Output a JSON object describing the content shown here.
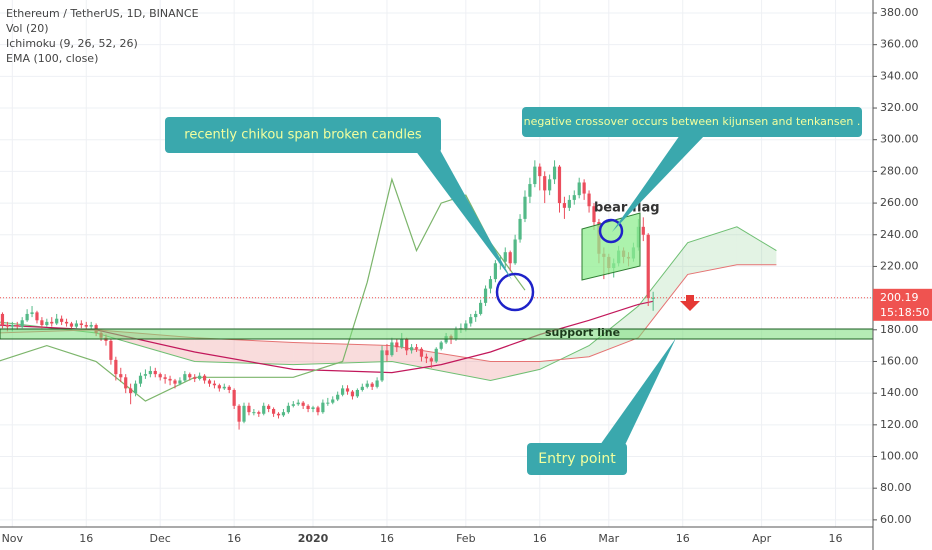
{
  "chart_data": {
    "type": "candlestick",
    "title": "Ethereum / TetherUS, 1D, BINANCE",
    "indicators": [
      "Vol (20)",
      "Ichimoku (9, 26, 52, 26)",
      "EMA (100, close)"
    ],
    "up_color": "#53b987",
    "down_color": "#eb4d5c",
    "candles": [
      [
        188,
        193,
        186,
        190
      ],
      [
        190,
        191,
        181,
        183
      ],
      [
        183,
        185,
        179,
        182
      ],
      [
        182,
        185,
        179,
        183
      ],
      [
        183,
        185,
        180,
        182
      ],
      [
        182,
        188,
        181,
        186
      ],
      [
        186,
        193,
        185,
        190
      ],
      [
        190,
        195,
        188,
        191
      ],
      [
        191,
        192,
        184,
        186
      ],
      [
        186,
        188,
        181,
        183
      ],
      [
        183,
        187,
        182,
        185
      ],
      [
        185,
        188,
        182,
        184
      ],
      [
        184,
        190,
        183,
        187
      ],
      [
        187,
        189,
        183,
        185
      ],
      [
        185,
        187,
        182,
        184
      ],
      [
        184,
        185,
        180,
        182
      ],
      [
        182,
        186,
        181,
        184
      ],
      [
        184,
        186,
        181,
        183
      ],
      [
        183,
        185,
        180,
        182
      ],
      [
        182,
        185,
        180,
        183
      ],
      [
        183,
        184,
        176,
        178
      ],
      [
        178,
        180,
        173,
        175
      ],
      [
        175,
        177,
        170,
        173
      ],
      [
        173,
        174,
        158,
        161
      ],
      [
        161,
        163,
        148,
        152
      ],
      [
        152,
        156,
        147,
        150
      ],
      [
        150,
        152,
        140,
        143
      ],
      [
        143,
        146,
        133,
        140
      ],
      [
        140,
        148,
        138,
        146
      ],
      [
        146,
        153,
        144,
        151
      ],
      [
        151,
        155,
        149,
        152
      ],
      [
        152,
        157,
        150,
        154
      ],
      [
        154,
        156,
        150,
        152
      ],
      [
        152,
        153,
        148,
        150
      ],
      [
        150,
        152,
        146,
        149
      ],
      [
        149,
        151,
        145,
        148
      ],
      [
        148,
        149,
        143,
        146
      ],
      [
        146,
        150,
        145,
        148
      ],
      [
        148,
        154,
        147,
        152
      ],
      [
        152,
        153,
        148,
        150
      ],
      [
        150,
        152,
        147,
        149
      ],
      [
        149,
        153,
        148,
        151
      ],
      [
        151,
        152,
        146,
        148
      ],
      [
        148,
        149,
        144,
        146
      ],
      [
        146,
        148,
        143,
        145
      ],
      [
        145,
        146,
        141,
        143
      ],
      [
        143,
        146,
        142,
        144
      ],
      [
        144,
        145,
        140,
        142
      ],
      [
        142,
        143,
        130,
        132
      ],
      [
        132,
        133,
        117,
        122
      ],
      [
        122,
        134,
        121,
        132
      ],
      [
        132,
        134,
        126,
        128
      ],
      [
        128,
        130,
        126,
        128
      ],
      [
        128,
        129,
        125,
        127
      ],
      [
        127,
        134,
        126,
        132
      ],
      [
        132,
        133,
        128,
        130
      ],
      [
        130,
        131,
        125,
        127
      ],
      [
        127,
        128,
        124,
        126
      ],
      [
        126,
        130,
        125,
        128
      ],
      [
        128,
        134,
        127,
        132
      ],
      [
        132,
        135,
        131,
        133
      ],
      [
        133,
        136,
        132,
        134
      ],
      [
        134,
        135,
        130,
        132
      ],
      [
        132,
        133,
        128,
        130
      ],
      [
        130,
        132,
        128,
        131
      ],
      [
        131,
        132,
        126,
        128
      ],
      [
        128,
        136,
        127,
        134
      ],
      [
        134,
        137,
        132,
        134
      ],
      [
        134,
        138,
        133,
        136
      ],
      [
        136,
        141,
        135,
        139
      ],
      [
        139,
        145,
        138,
        143
      ],
      [
        143,
        145,
        139,
        141
      ],
      [
        141,
        142,
        136,
        138
      ],
      [
        138,
        143,
        137,
        142
      ],
      [
        142,
        146,
        141,
        144
      ],
      [
        144,
        148,
        143,
        146
      ],
      [
        146,
        147,
        142,
        144
      ],
      [
        144,
        150,
        143,
        148
      ],
      [
        148,
        170,
        147,
        167
      ],
      [
        167,
        171,
        160,
        164
      ],
      [
        164,
        175,
        163,
        172
      ],
      [
        172,
        174,
        166,
        169
      ],
      [
        169,
        178,
        168,
        174
      ],
      [
        174,
        175,
        164,
        167
      ],
      [
        167,
        171,
        165,
        169
      ],
      [
        169,
        171,
        166,
        168
      ],
      [
        168,
        169,
        160,
        163
      ],
      [
        163,
        165,
        159,
        162
      ],
      [
        162,
        163,
        156,
        160
      ],
      [
        160,
        169,
        159,
        168
      ],
      [
        168,
        173,
        167,
        172
      ],
      [
        172,
        178,
        171,
        176
      ],
      [
        176,
        177,
        171,
        174
      ],
      [
        174,
        182,
        173,
        180
      ],
      [
        180,
        184,
        178,
        181
      ],
      [
        181,
        186,
        179,
        184
      ],
      [
        184,
        190,
        182,
        188
      ],
      [
        188,
        192,
        185,
        190
      ],
      [
        190,
        199,
        189,
        197
      ],
      [
        197,
        208,
        195,
        206
      ],
      [
        206,
        214,
        203,
        212
      ],
      [
        212,
        224,
        210,
        222
      ],
      [
        222,
        227,
        218,
        223
      ],
      [
        223,
        232,
        219,
        229
      ],
      [
        229,
        230,
        217,
        222
      ],
      [
        222,
        240,
        221,
        237
      ],
      [
        237,
        253,
        235,
        250
      ],
      [
        250,
        268,
        248,
        264
      ],
      [
        264,
        276,
        260,
        272
      ],
      [
        272,
        287,
        270,
        283
      ],
      [
        283,
        285,
        268,
        277
      ],
      [
        277,
        280,
        260,
        268
      ],
      [
        268,
        278,
        265,
        275
      ],
      [
        275,
        287,
        272,
        283
      ],
      [
        283,
        284,
        254,
        260
      ],
      [
        260,
        264,
        250,
        257
      ],
      [
        257,
        265,
        255,
        262
      ],
      [
        262,
        268,
        259,
        265
      ],
      [
        265,
        276,
        263,
        273
      ],
      [
        273,
        275,
        262,
        266
      ],
      [
        266,
        268,
        254,
        258
      ],
      [
        258,
        260,
        243,
        248
      ],
      [
        248,
        250,
        222,
        228
      ],
      [
        228,
        232,
        212,
        226
      ],
      [
        226,
        228,
        215,
        219
      ],
      [
        219,
        225,
        213,
        222
      ],
      [
        222,
        233,
        220,
        230
      ],
      [
        230,
        232,
        222,
        226
      ],
      [
        226,
        229,
        220,
        225
      ],
      [
        225,
        235,
        223,
        232
      ],
      [
        232,
        250,
        230,
        245
      ],
      [
        245,
        251,
        236,
        240
      ],
      [
        240,
        241,
        195,
        200
      ],
      [
        200,
        204,
        192,
        200.19
      ]
    ],
    "lines": [
      {
        "color": "#c2185b",
        "x": [
          0,
          20,
          40,
          60,
          80,
          90,
          100,
          110,
          120,
          130,
          133
        ],
        "values": [
          183,
          180,
          166,
          155,
          153,
          158,
          166,
          177,
          186,
          196,
          198
        ]
      },
      {
        "color": "#7cb56b",
        "x": [
          0,
          10,
          20,
          30,
          40,
          50,
          60,
          70,
          75,
          80,
          85,
          90,
          95,
          100,
          107
        ],
        "values": [
          160,
          170,
          160,
          135,
          150,
          150,
          150,
          160,
          210,
          275,
          230,
          260,
          265,
          235,
          205
        ]
      }
    ],
    "cloud": {
      "x": [
        0,
        20,
        40,
        60,
        80,
        100,
        110,
        120,
        130,
        140,
        150,
        158
      ],
      "span_a": [
        185,
        178,
        160,
        158,
        160,
        148,
        155,
        170,
        195,
        235,
        245,
        230
      ],
      "span_b": [
        178,
        180,
        175,
        172,
        170,
        160,
        160,
        163,
        175,
        215,
        221,
        221
      ],
      "span_a_color": "#6fbf73",
      "span_b_color": "#e57373",
      "up_fill": "rgba(129,199,132,0.22)",
      "down_fill": "rgba(239,154,154,0.35)"
    },
    "xlim": [
      0.5,
      177.6
    ],
    "xticks": [
      {
        "value": 3,
        "label": "Nov"
      },
      {
        "value": 18,
        "label": "16"
      },
      {
        "value": 33,
        "label": "Dec"
      },
      {
        "value": 48,
        "label": "16"
      },
      {
        "value": 64,
        "label": "2020"
      },
      {
        "value": 79,
        "label": "16"
      },
      {
        "value": 95,
        "label": "Feb"
      },
      {
        "value": 110,
        "label": "16"
      },
      {
        "value": 124,
        "label": "Mar"
      },
      {
        "value": 139,
        "label": "16"
      },
      {
        "value": 155,
        "label": "Apr"
      },
      {
        "value": 170,
        "label": "16"
      }
    ],
    "ylim": [
      55.5,
      388.2
    ],
    "yticks": [
      {
        "value": 60,
        "label": "60.00"
      },
      {
        "value": 80,
        "label": "80.00"
      },
      {
        "value": 100,
        "label": "100.00"
      },
      {
        "value": 120,
        "label": "120.00"
      },
      {
        "value": 140,
        "label": "140.00"
      },
      {
        "value": 160,
        "label": "160.00"
      },
      {
        "value": 180,
        "label": "180.00"
      },
      {
        "value": 200,
        "label": "200.00"
      },
      {
        "value": 220,
        "label": "220.00"
      },
      {
        "value": 240,
        "label": "240.00"
      },
      {
        "value": 260,
        "label": "260.00"
      },
      {
        "value": 280,
        "label": "280.00"
      },
      {
        "value": 300,
        "label": "300.00"
      },
      {
        "value": 320,
        "label": "320.00"
      },
      {
        "value": 340,
        "label": "340.00"
      },
      {
        "value": 360,
        "label": "360.00"
      },
      {
        "value": 380,
        "label": "380.00"
      }
    ],
    "grid": true,
    "countdown": "15:18:50",
    "annotations": [
      "recently chikou span broken candles",
      "negative crossover occurs between kijunsen and tenkansen .",
      "bear flag",
      "support line",
      "Entry point"
    ]
  }
}
